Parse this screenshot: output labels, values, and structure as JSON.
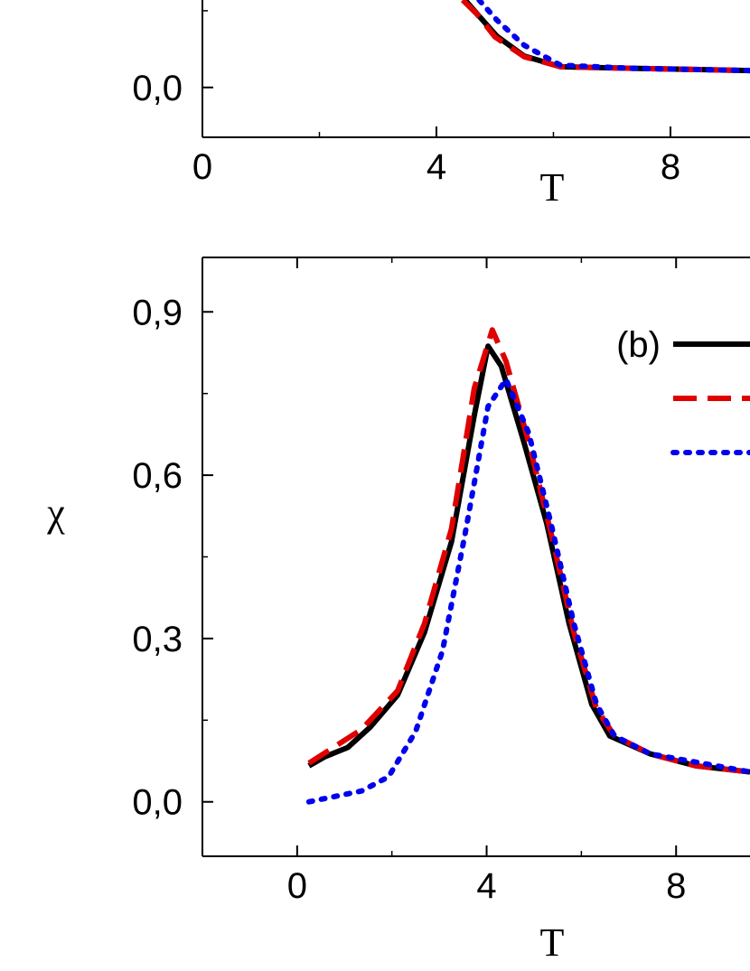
{
  "chart_data": [
    {
      "type": "line",
      "xlabel": "T",
      "xlim": [
        0,
        9.36
      ],
      "ylim": [
        -0.065,
        0.114
      ],
      "xticks": [
        0,
        4,
        8
      ],
      "yticks": [
        {
          "value": 0,
          "label": "0,0"
        }
      ],
      "series": [
        {
          "color": "#000000",
          "dash": "solid",
          "x": [
            4.49,
            4.73,
            5.03,
            5.5,
            6.12,
            7.35,
            9.36
          ],
          "values": [
            0.114,
            0.093,
            0.067,
            0.041,
            0.027,
            0.025,
            0.022
          ]
        },
        {
          "color": "#e00000",
          "dash": "dashed",
          "x": [
            4.45,
            4.7,
            5.0,
            5.5,
            6.12,
            7.35,
            9.36
          ],
          "values": [
            0.114,
            0.095,
            0.066,
            0.04,
            0.027,
            0.025,
            0.022
          ]
        },
        {
          "color": "#0000ee",
          "dash": "dotted",
          "x": [
            4.73,
            5.03,
            5.5,
            6.12,
            7.35,
            9.36
          ],
          "values": [
            0.114,
            0.088,
            0.055,
            0.029,
            0.025,
            0.022
          ]
        }
      ]
    },
    {
      "type": "line",
      "xlabel": "T",
      "ylabel": "χ",
      "legend_label": "(b)",
      "xlim": [
        -2,
        9.56
      ],
      "ylim": [
        -0.1,
        1.0
      ],
      "xticks": [
        0,
        4,
        8
      ],
      "yticks": [
        {
          "value": 0,
          "label": "0,0"
        },
        {
          "value": 0.3,
          "label": "0,3"
        },
        {
          "value": 0.6,
          "label": "0,6"
        },
        {
          "value": 0.9,
          "label": "0,9"
        }
      ],
      "series": [
        {
          "color": "#000000",
          "dash": "solid",
          "x": [
            0.25,
            0.59,
            1.07,
            1.55,
            2.12,
            2.69,
            3.26,
            3.74,
            4.03,
            4.31,
            4.79,
            5.27,
            5.74,
            6.22,
            6.6,
            7.46,
            8.42,
            9.56
          ],
          "values": [
            0.066,
            0.083,
            0.1,
            0.138,
            0.196,
            0.312,
            0.478,
            0.71,
            0.837,
            0.8,
            0.66,
            0.511,
            0.328,
            0.179,
            0.121,
            0.088,
            0.066,
            0.055
          ]
        },
        {
          "color": "#e00000",
          "dash": "dashed",
          "x": [
            0.25,
            1.36,
            2.12,
            2.69,
            3.26,
            3.74,
            4.12,
            4.41,
            4.89,
            5.36,
            5.84,
            6.32,
            6.7,
            7.46,
            8.42,
            9.56
          ],
          "values": [
            0.071,
            0.133,
            0.204,
            0.328,
            0.502,
            0.76,
            0.867,
            0.809,
            0.66,
            0.494,
            0.312,
            0.171,
            0.121,
            0.088,
            0.066,
            0.055
          ]
        },
        {
          "color": "#0000ee",
          "dash": "dotted",
          "x": [
            0.25,
            1.36,
            1.93,
            2.5,
            3.07,
            3.55,
            4.03,
            4.41,
            4.89,
            5.36,
            5.84,
            6.32,
            6.7,
            7.46,
            9.56
          ],
          "values": [
            0.0,
            0.02,
            0.046,
            0.129,
            0.278,
            0.494,
            0.726,
            0.776,
            0.677,
            0.511,
            0.328,
            0.179,
            0.121,
            0.088,
            0.055
          ]
        }
      ]
    }
  ]
}
